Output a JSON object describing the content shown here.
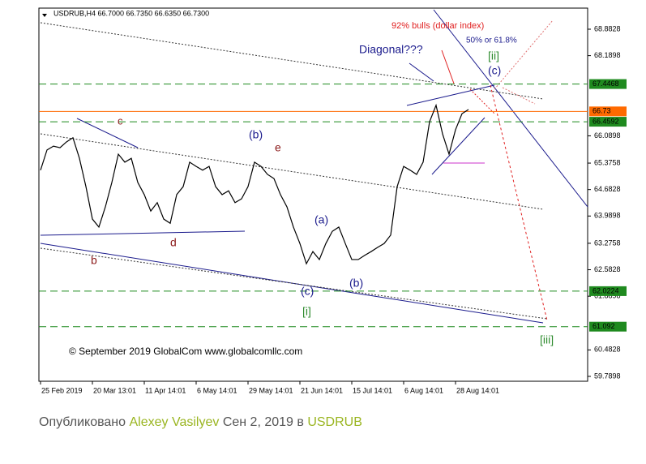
{
  "chart_data": {
    "type": "line",
    "title": "USDRUB,H4 66.7000 66.7350 66.6350 66.7300",
    "categories": [
      "25 Feb 2019",
      null,
      null,
      null,
      null,
      null,
      null,
      null,
      "20 Mar 13:01",
      null,
      null,
      null,
      null,
      null,
      null,
      null,
      "11 Apr 14:01",
      null,
      null,
      null,
      null,
      null,
      null,
      null,
      "6 May 14:01",
      null,
      null,
      null,
      null,
      null,
      null,
      null,
      "29 May 14:01",
      null,
      null,
      null,
      null,
      null,
      null,
      null,
      "21 Jun 14:01",
      null,
      null,
      null,
      null,
      null,
      null,
      null,
      "15 Jul 14:01",
      null,
      null,
      null,
      null,
      null,
      null,
      null,
      "6 Aug 14:01",
      null,
      null,
      null,
      null,
      null,
      null,
      null,
      "28 Aug 14:01",
      null,
      null
    ],
    "series": [
      {
        "color": "#000000",
        "values": [
          65.19,
          65.72,
          65.82,
          65.78,
          65.93,
          66.04,
          65.5,
          64.76,
          63.91,
          63.7,
          64.23,
          64.87,
          65.61,
          65.4,
          65.5,
          64.87,
          64.55,
          64.12,
          64.34,
          63.91,
          63.8,
          64.55,
          64.76,
          65.4,
          65.29,
          65.19,
          65.29,
          64.76,
          64.55,
          64.65,
          64.34,
          64.44,
          64.76,
          65.4,
          65.29,
          65.08,
          64.97,
          64.55,
          64.23,
          63.7,
          63.27,
          62.74,
          63.06,
          62.85,
          63.27,
          63.59,
          63.7,
          63.27,
          62.85,
          62.85,
          62.96,
          63.06,
          63.17,
          63.27,
          63.49,
          64.76,
          65.29,
          65.19,
          65.08,
          65.4,
          66.46,
          66.89,
          66.14,
          65.61,
          66.25,
          66.67,
          66.78
        ]
      }
    ],
    "ylim": [
      59.662,
      69.435
    ],
    "yticks": [
      59.7898,
      60.4828,
      61.8898,
      62.5828,
      63.2758,
      63.9898,
      64.6828,
      65.3758,
      66.0898,
      68.1898,
      68.8828
    ],
    "hlines": [
      {
        "value": 67.4468,
        "color": "#1f8a1f"
      },
      {
        "value": 66.73,
        "color": "#ff6a00"
      },
      {
        "value": 66.4592,
        "color": "#1f8a1f"
      },
      {
        "value": 62.0224,
        "color": "#1f8a1f"
      },
      {
        "value": 61.092,
        "color": "#1f8a1f"
      }
    ],
    "annotations": [
      {
        "text": "92% bulls  (dollar index)",
        "color": "#e02020"
      },
      {
        "text": "50% or 61.8%",
        "color": "#1a1a8c"
      },
      {
        "text": "Diagonal???",
        "color": "#1a1a8c"
      },
      {
        "text": "[ii]",
        "color": "#2e8b2e"
      },
      {
        "text": "(c)",
        "color": "#1a1a8c"
      },
      {
        "text": "c",
        "color": "#8b1a1a"
      },
      {
        "text": "(b)",
        "color": "#1a1a8c"
      },
      {
        "text": "e",
        "color": "#8b1a1a"
      },
      {
        "text": "d",
        "color": "#8b1a1a"
      },
      {
        "text": "b",
        "color": "#8b1a1a"
      },
      {
        "text": "(a)",
        "color": "#1a1a8c"
      },
      {
        "text": "(c)",
        "color": "#1a1a8c"
      },
      {
        "text": "(b)",
        "color": "#1a1a8c"
      },
      {
        "text": "[i]",
        "color": "#2e8b2e"
      },
      {
        "text": "[iii]",
        "color": "#2e8b2e"
      },
      {
        "text": "© September 2019 GlobalCom www.globalcomllc.com",
        "color": "#000000"
      }
    ]
  },
  "footer": {
    "prefix": "Опубликовано",
    "author": "Alexey Vasilyev",
    "date": "Сен 2, 2019 в",
    "symbol": "USDRUB"
  }
}
